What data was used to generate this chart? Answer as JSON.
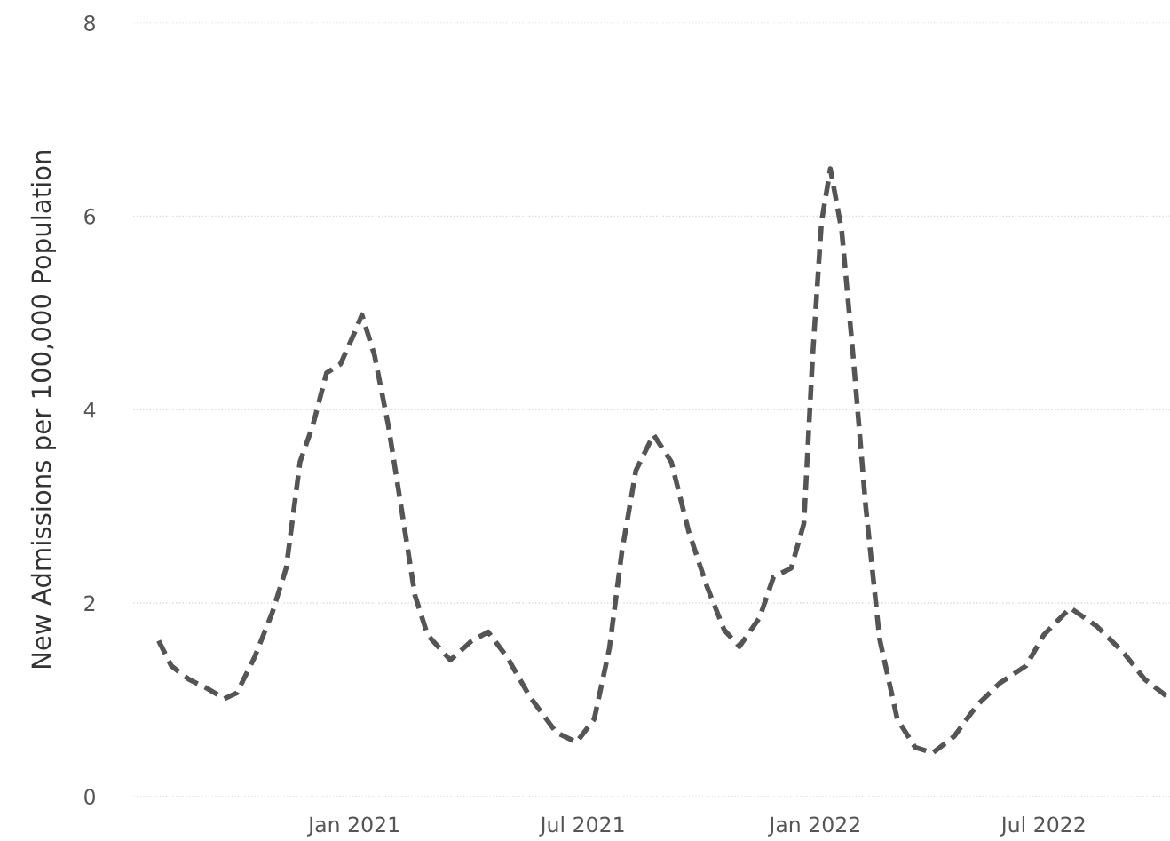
{
  "chart_data": {
    "type": "line",
    "ylabel": "New Admissions per 100,000 Population",
    "x": [
      "2020-07-30",
      "2020-08-09",
      "2020-08-23",
      "2020-09-06",
      "2020-09-20",
      "2020-09-30",
      "2020-10-14",
      "2020-10-28",
      "2020-11-08",
      "2020-11-19",
      "2020-11-29",
      "2020-12-10",
      "2020-12-21",
      "2021-01-01",
      "2021-01-07",
      "2021-01-17",
      "2021-01-28",
      "2021-02-07",
      "2021-02-18",
      "2021-02-28",
      "2021-03-18",
      "2021-04-04",
      "2021-04-17",
      "2021-05-02",
      "2021-05-20",
      "2021-06-10",
      "2021-06-26",
      "2021-07-10",
      "2021-07-22",
      "2021-08-01",
      "2021-08-12",
      "2021-08-26",
      "2021-09-09",
      "2021-09-23",
      "2021-10-07",
      "2021-10-21",
      "2021-11-02",
      "2021-11-18",
      "2021-11-29",
      "2021-12-13",
      "2021-12-23",
      "2021-12-30",
      "2022-01-06",
      "2022-01-13",
      "2022-01-22",
      "2022-01-31",
      "2022-02-10",
      "2022-02-21",
      "2022-03-07",
      "2022-03-21",
      "2022-04-04",
      "2022-04-21",
      "2022-05-09",
      "2022-05-27",
      "2022-06-17",
      "2022-07-01",
      "2022-07-22",
      "2022-08-12",
      "2022-09-02",
      "2022-09-19",
      "2022-10-07"
    ],
    "series": [
      {
        "color": "#555555",
        "values": [
          1.61,
          1.35,
          1.21,
          1.12,
          1.01,
          1.07,
          1.44,
          1.9,
          2.36,
          3.46,
          3.83,
          4.38,
          4.47,
          4.79,
          4.98,
          4.56,
          3.83,
          3.0,
          2.08,
          1.67,
          1.41,
          1.61,
          1.7,
          1.44,
          1.03,
          0.66,
          0.56,
          0.8,
          1.53,
          2.54,
          3.37,
          3.74,
          3.46,
          2.73,
          2.18,
          1.72,
          1.55,
          1.85,
          2.27,
          2.36,
          2.82,
          4.56,
          5.94,
          6.49,
          5.85,
          4.56,
          3.0,
          1.63,
          0.8,
          0.51,
          0.45,
          0.62,
          0.94,
          1.17,
          1.35,
          1.67,
          1.95,
          1.76,
          1.49,
          1.21,
          1.03
        ]
      }
    ],
    "xlim": [
      "2020-07-10",
      "2022-10-09"
    ],
    "xticks": [
      {
        "value": "2021-01-01",
        "label": "Jan 2021"
      },
      {
        "value": "2021-07-01",
        "label": "Jul 2021"
      },
      {
        "value": "2022-01-01",
        "label": "Jan 2022"
      },
      {
        "value": "2022-07-01",
        "label": "Jul 2022"
      }
    ],
    "ylim": [
      0,
      8
    ],
    "yticks": [
      0,
      2,
      4,
      6,
      8
    ],
    "grid": "y",
    "line_style": "dashed"
  }
}
